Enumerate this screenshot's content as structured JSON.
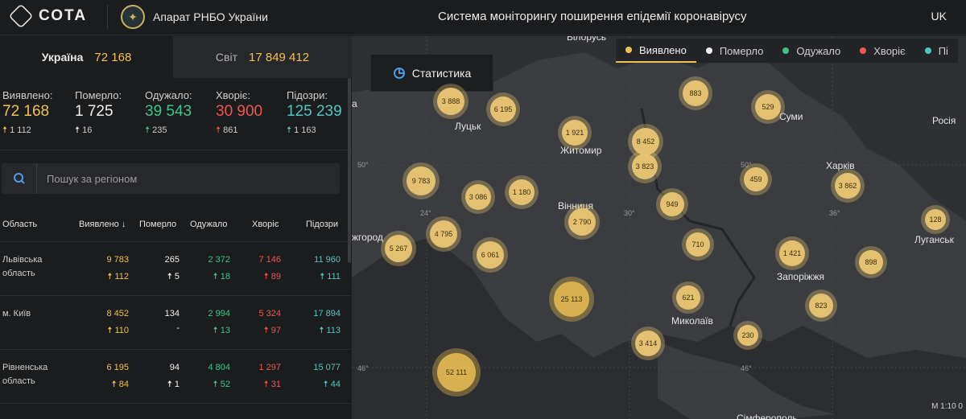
{
  "header": {
    "logo_text": "СОТА",
    "org_name": "Апарат РНБО України",
    "system_title": "Система моніторингу поширення епідемії коронавірусу",
    "language": "UK"
  },
  "scope_tabs": [
    {
      "label": "Україна",
      "value": "72 168"
    },
    {
      "label": "Світ",
      "value": "17 849 412"
    }
  ],
  "stats": [
    {
      "label": "Виявлено:",
      "value": "72 168",
      "delta": "1 112",
      "color": "#f2c14e"
    },
    {
      "label": "Померло:",
      "value": "1 725",
      "delta": "16",
      "color": "#f0f0f0"
    },
    {
      "label": "Одужало:",
      "value": "39 543",
      "delta": "235",
      "color": "#3fc68a"
    },
    {
      "label": "Хворіє:",
      "value": "30 900",
      "delta": "861",
      "color": "#f0564b"
    },
    {
      "label": "Підозри:",
      "value": "125 239",
      "delta": "1 163",
      "color": "#4fc7c0"
    }
  ],
  "search": {
    "placeholder": "Пошук за регіоном"
  },
  "table": {
    "headers": [
      "Область",
      "Виявлено",
      "Померло",
      "Одужало",
      "Хворіє",
      "Підозри"
    ],
    "sort_arrow": "↓",
    "rows": [
      {
        "name": "Львівська область",
        "detected": "9 783",
        "detected_d": "112",
        "died": "265",
        "died_d": "5",
        "recovered": "2 372",
        "recovered_d": "18",
        "sick": "7 146",
        "sick_d": "89",
        "suspect": "11 960",
        "suspect_d": "111"
      },
      {
        "name": "м. Київ",
        "detected": "8 452",
        "detected_d": "110",
        "died": "134",
        "died_d": "-",
        "recovered": "2 994",
        "recovered_d": "13",
        "sick": "5 324",
        "sick_d": "97",
        "suspect": "17 894",
        "suspect_d": "113"
      },
      {
        "name": "Рівненська область",
        "detected": "6 195",
        "detected_d": "84",
        "died": "94",
        "died_d": "1",
        "recovered": "4 804",
        "recovered_d": "52",
        "sick": "1 297",
        "sick_d": "31",
        "suspect": "15 077",
        "suspect_d": "44"
      }
    ]
  },
  "map": {
    "stats_button": "Статистика",
    "legend": [
      {
        "label": "Виявлено",
        "color": "#f2c14e"
      },
      {
        "label": "Померло",
        "color": "#f0f0f0"
      },
      {
        "label": "Одужало",
        "color": "#3fc68a"
      },
      {
        "label": "Хворіє",
        "color": "#f0564b"
      },
      {
        "label": "Пі",
        "color": "#4fc7c0"
      }
    ],
    "places": [
      "Білорусь",
      "Луцьк",
      "Житомир",
      "Суми",
      "Росія",
      "Харків",
      "Вінниця",
      "Луганськ",
      "Запоріжжя",
      "Миколаїв",
      "Сімферополь",
      "жгород",
      "а"
    ],
    "grid_labels": [
      "50°",
      "50°",
      "24°",
      "30°",
      "36°",
      "46°",
      "46°"
    ],
    "scale": "M 1:10 0",
    "bubbles": [
      "3 888",
      "6 195",
      "1 921",
      "883",
      "529",
      "8 452",
      "3 823",
      "9 783",
      "3 086",
      "1 180",
      "459",
      "3 862",
      "949",
      "2 790",
      "4 795",
      "5 267",
      "6 061",
      "710",
      "1 421",
      "128",
      "898",
      "25 113",
      "621",
      "823",
      "230",
      "3 414",
      "52 111"
    ]
  }
}
